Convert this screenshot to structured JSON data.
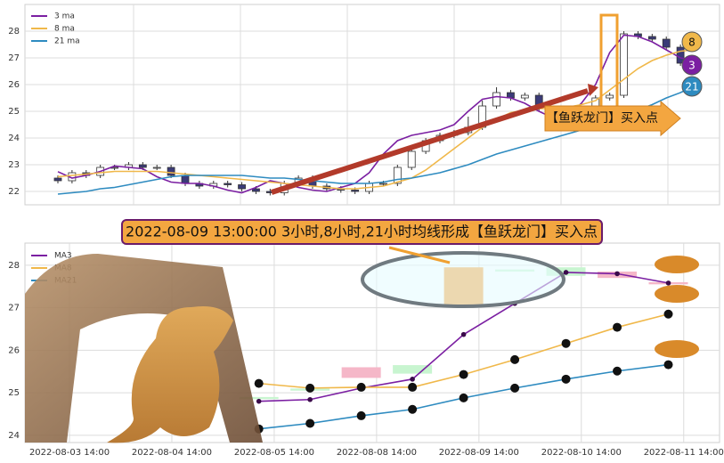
{
  "chart_data": [
    {
      "type": "candlestick",
      "categories": [
        null,
        null,
        null,
        null,
        null,
        null,
        null,
        null,
        null,
        null,
        null,
        null,
        null,
        null,
        null,
        null,
        null,
        null,
        null,
        null,
        null,
        null,
        null,
        null,
        null,
        null,
        null,
        null,
        null,
        null,
        null,
        null,
        null,
        null,
        null,
        null,
        null,
        null,
        null,
        null,
        null,
        null,
        null,
        null,
        null,
        null
      ],
      "candles": {
        "open": [
          22.5,
          22.4,
          22.7,
          22.6,
          22.9,
          22.9,
          23.0,
          22.9,
          22.9,
          22.6,
          22.3,
          22.2,
          22.3,
          22.25,
          22.1,
          22.0,
          21.95,
          22.3,
          22.5,
          22.2,
          22.1,
          22.05,
          22.0,
          22.3,
          22.3,
          22.9,
          23.5,
          23.9,
          24.1,
          24.2,
          24.4,
          25.2,
          25.7,
          25.5,
          25.6,
          25.1,
          24.8,
          24.7,
          24.9,
          25.5,
          25.6,
          27.9,
          27.8,
          27.7,
          27.4,
          26.8
        ],
        "high": [
          22.6,
          22.8,
          22.8,
          23.0,
          23.0,
          23.1,
          23.1,
          23.0,
          23.0,
          22.7,
          22.4,
          22.4,
          22.4,
          22.35,
          22.2,
          22.1,
          22.4,
          22.6,
          22.6,
          22.3,
          22.2,
          22.15,
          22.4,
          22.4,
          23.0,
          23.6,
          24.0,
          24.2,
          24.3,
          24.8,
          25.4,
          25.9,
          25.8,
          25.7,
          25.7,
          25.2,
          24.9,
          25.0,
          25.6,
          25.7,
          28.0,
          28.0,
          27.9,
          27.8,
          27.5,
          26.9
        ],
        "low": [
          22.3,
          22.3,
          22.5,
          22.5,
          22.8,
          22.8,
          22.8,
          22.8,
          22.5,
          22.2,
          22.1,
          22.1,
          22.15,
          22.0,
          21.9,
          21.85,
          21.85,
          22.2,
          22.1,
          22.0,
          21.95,
          21.9,
          21.9,
          22.2,
          22.2,
          22.8,
          23.4,
          23.8,
          24.0,
          24.1,
          24.3,
          25.1,
          25.4,
          25.4,
          25.0,
          24.7,
          24.6,
          24.6,
          24.8,
          25.4,
          25.5,
          27.7,
          27.6,
          27.3,
          26.7,
          26.5
        ],
        "close": [
          22.4,
          22.7,
          22.6,
          22.9,
          22.9,
          23.0,
          22.9,
          22.9,
          22.6,
          22.3,
          22.2,
          22.3,
          22.25,
          22.1,
          22.0,
          21.95,
          22.3,
          22.5,
          22.2,
          22.1,
          22.05,
          22.0,
          22.3,
          22.3,
          22.9,
          23.5,
          23.9,
          24.1,
          24.2,
          24.4,
          25.2,
          25.7,
          25.5,
          25.6,
          25.1,
          24.8,
          24.7,
          24.9,
          25.5,
          25.6,
          27.9,
          27.8,
          27.7,
          27.4,
          26.8,
          26.6
        ],
        "up_color": "#ffffff",
        "down_color": "#3b3b78"
      },
      "series": [
        {
          "name": "3 ma",
          "color": "#7b1fa2",
          "end_label": "3",
          "values": [
            22.74,
            22.5,
            22.6,
            22.75,
            22.95,
            22.9,
            22.85,
            22.55,
            22.35,
            22.3,
            22.3,
            22.2,
            22.05,
            21.95,
            22.15,
            22.4,
            22.3,
            22.15,
            22.05,
            22.0,
            22.15,
            22.3,
            22.7,
            23.4,
            23.9,
            24.1,
            24.2,
            24.3,
            24.5,
            25.0,
            25.45,
            25.55,
            25.5,
            25.3,
            25.0,
            24.75,
            24.8,
            25.3,
            26.0,
            27.2,
            27.85,
            27.8,
            27.6,
            27.3,
            27.0,
            26.9
          ]
        },
        {
          "name": "8 ma",
          "color": "#f0b84a",
          "end_label": "8",
          "values": [
            22.55,
            22.6,
            22.65,
            22.7,
            22.75,
            22.75,
            22.75,
            22.75,
            22.7,
            22.65,
            22.6,
            22.55,
            22.5,
            22.45,
            22.4,
            22.35,
            22.3,
            22.25,
            22.2,
            22.15,
            22.1,
            22.1,
            22.15,
            22.2,
            22.35,
            22.5,
            22.8,
            23.2,
            23.6,
            24.0,
            24.4,
            24.7,
            24.95,
            25.05,
            25.1,
            25.1,
            25.15,
            25.25,
            25.4,
            25.8,
            26.2,
            26.6,
            26.9,
            27.1,
            27.25,
            27.3
          ]
        },
        {
          "name": "21 ma",
          "color": "#2e8bc0",
          "end_label": "21",
          "values": [
            21.9,
            21.95,
            22.0,
            22.1,
            22.15,
            22.25,
            22.35,
            22.45,
            22.55,
            22.6,
            22.6,
            22.6,
            22.6,
            22.6,
            22.55,
            22.5,
            22.5,
            22.45,
            22.4,
            22.35,
            22.3,
            22.3,
            22.3,
            22.35,
            22.45,
            22.5,
            22.6,
            22.7,
            22.85,
            23.0,
            23.2,
            23.4,
            23.55,
            23.7,
            23.85,
            24.0,
            24.15,
            24.3,
            24.5,
            24.65,
            24.85,
            25.05,
            25.25,
            25.5,
            25.7,
            25.95
          ]
        }
      ],
      "ylim": [
        21.5,
        29.0
      ],
      "yticks": [
        22,
        23,
        24,
        25,
        26,
        27,
        28
      ],
      "grid": true,
      "annotations": [
        "【鱼跃龙门】买入点"
      ]
    },
    {
      "type": "candlestick",
      "title": "2022-08-09 13:00:00 3小时,8小时,21小时均线形成【鱼跃龙门】买入点",
      "x": [
        3.7,
        4.7,
        5.7,
        6.7,
        7.7,
        8.7,
        9.7,
        10.7,
        11.7
      ],
      "candles": {
        "open": [
          24.85,
          25.05,
          25.6,
          25.45,
          27.05,
          27.85,
          27.75,
          27.85,
          27.6
        ],
        "close": [
          24.9,
          25.1,
          25.35,
          25.65,
          27.95,
          27.9,
          27.95,
          27.7,
          27.55
        ],
        "colors": [
          "#c8f5d0",
          "#c8f5d0",
          "#f5b7c8",
          "#c8f5d0",
          "#f4a23a",
          "#c8f5d0",
          "#c8f5d0",
          "#f5b7c8",
          "#f5b7c8"
        ]
      },
      "series": [
        {
          "name": "MA3",
          "color": "#7b1fa2",
          "marker_color": "#3a0a4a",
          "values": [
            24.8,
            24.84,
            25.11,
            25.32,
            26.37,
            27.1,
            27.83,
            27.8,
            27.58
          ]
        },
        {
          "name": "MA8",
          "color": "#f0b84a",
          "marker_color": "#111111",
          "values": [
            25.22,
            25.11,
            25.13,
            25.13,
            25.43,
            25.78,
            26.16,
            26.54,
            26.85
          ]
        },
        {
          "name": "MA21",
          "color": "#2e8bc0",
          "marker_color": "#111111",
          "values": [
            24.15,
            24.28,
            24.46,
            24.61,
            24.88,
            25.11,
            25.32,
            25.51,
            25.66
          ]
        }
      ],
      "xlim": [
        -0.87,
        12.7
      ],
      "xticks": [
        {
          "value": 0,
          "label": "2022-08-03 14:00"
        },
        {
          "value": 2,
          "label": "2022-08-04 14:00"
        },
        {
          "value": 4,
          "label": "2022-08-05 14:00"
        },
        {
          "value": 6,
          "label": "2022-08-08 14:00"
        },
        {
          "value": 8,
          "label": "2022-08-09 14:00"
        },
        {
          "value": 10,
          "label": "2022-08-10 14:00"
        },
        {
          "value": 12,
          "label": "2022-08-11 14:00"
        }
      ],
      "ylim": [
        23.83,
        28.52
      ],
      "yticks": [
        24,
        25,
        26,
        27,
        28
      ],
      "grid": true
    }
  ]
}
